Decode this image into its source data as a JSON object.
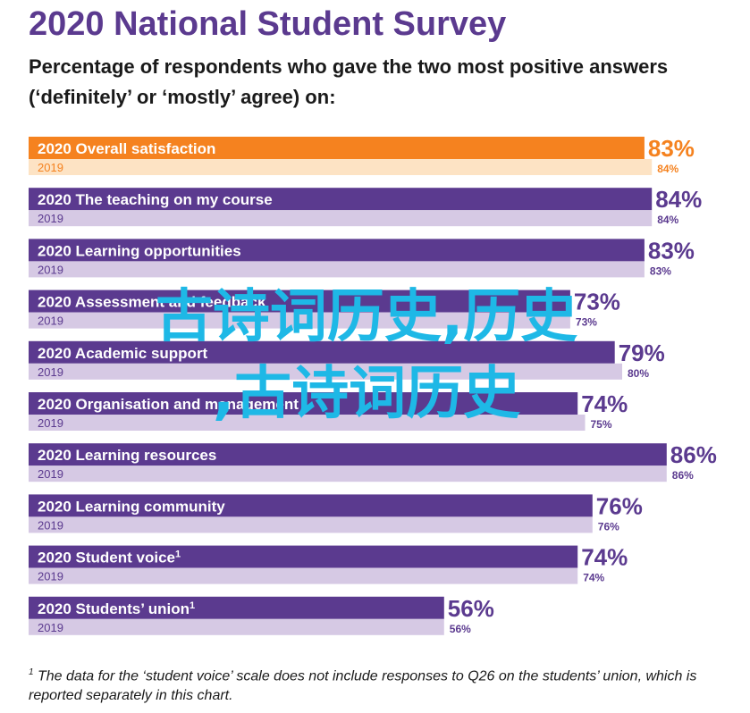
{
  "title": "2020 National Student Survey",
  "subtitle": "Percentage of respondents who gave the two most positive answers (‘definitely’ or ‘mostly’ agree) on:",
  "chart_data": {
    "type": "bar",
    "orientation": "horizontal",
    "xlim": [
      0,
      100
    ],
    "categories": [
      "Overall satisfaction",
      "The teaching on my course",
      "Learning opportunities",
      "Assessment and feedback",
      "Academic support",
      "Organisation and management",
      "Learning resources",
      "Learning community",
      "Student voice",
      "Students’ union"
    ],
    "category_superscripts": [
      "",
      "",
      "",
      "",
      "",
      "",
      "",
      "",
      "1",
      "1"
    ],
    "series": [
      {
        "name": "2020",
        "values": [
          83,
          84,
          83,
          73,
          79,
          74,
          86,
          76,
          74,
          56
        ],
        "value_labels": [
          "83%",
          "84%",
          "83%",
          "73%",
          "79%",
          "74%",
          "86%",
          "76%",
          "74%",
          "56%"
        ]
      },
      {
        "name": "2019",
        "values": [
          84,
          84,
          83,
          73,
          80,
          75,
          86,
          76,
          74,
          56
        ],
        "value_labels": [
          "84%",
          "84%",
          "83%",
          "73%",
          "80%",
          "75%",
          "86%",
          "76%",
          "74%",
          "56%"
        ]
      }
    ],
    "colors": {
      "highlight_2020": "#f5821f",
      "highlight_2019": "#fde3c4",
      "bar_2020": "#5b3a8f",
      "bar_2019": "#d6c9e4",
      "highlight_value": "#f5821f",
      "value": "#5b3a8f",
      "label_2019_highlight": "#f5821f",
      "label_2019": "#5b3a8f"
    }
  },
  "watermark": {
    "line1": "古诗词历史,历史",
    "line2": ",古诗词历史"
  },
  "footnote": {
    "marker": "1",
    "text": " The data for the ‘student voice’ scale does not include responses to Q26 on the students’ union, which is reported separately in this chart."
  }
}
